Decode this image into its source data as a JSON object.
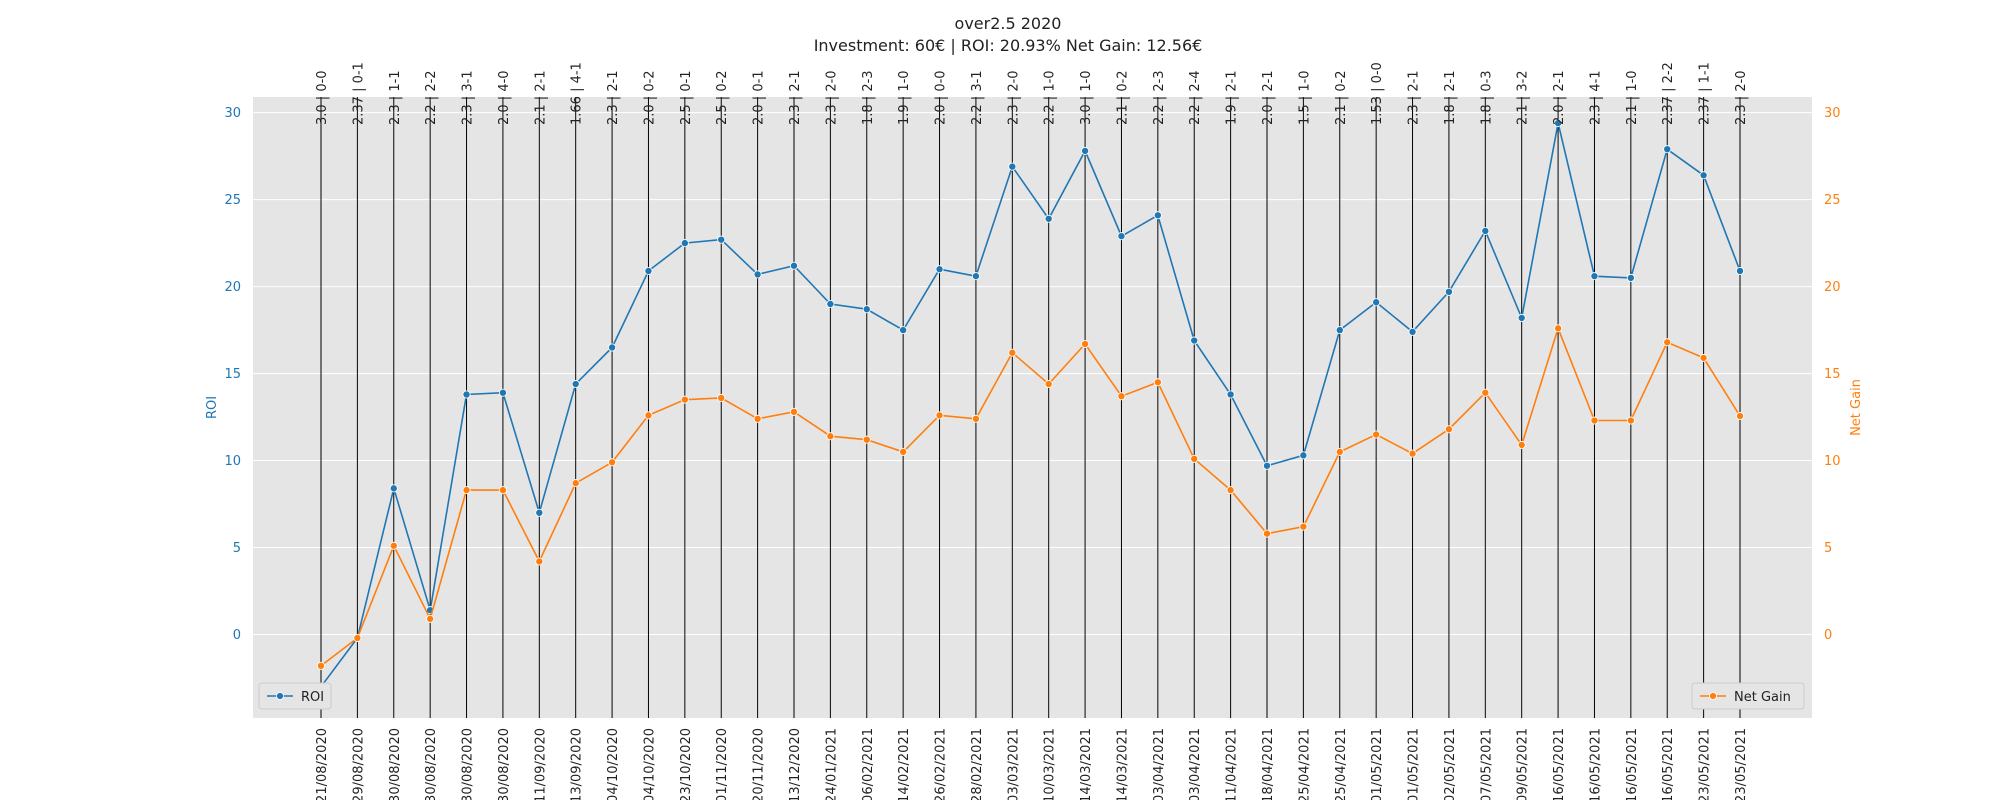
{
  "chart_data": {
    "type": "line",
    "title": "over2.5 2020",
    "subtitle": "Investment: 60€ | ROI: 20.93% Net Gain: 12.56€",
    "x": [
      "21/08/2020",
      "29/08/2020",
      "30/08/2020",
      "30/08/2020",
      "30/08/2020",
      "30/08/2020",
      "11/09/2020",
      "13/09/2020",
      "04/10/2020",
      "04/10/2020",
      "23/10/2020",
      "01/11/2020",
      "20/11/2020",
      "13/12/2020",
      "24/01/2021",
      "06/02/2021",
      "14/02/2021",
      "26/02/2021",
      "28/02/2021",
      "03/03/2021",
      "10/03/2021",
      "14/03/2021",
      "14/03/2021",
      "03/04/2021",
      "03/04/2021",
      "11/04/2021",
      "18/04/2021",
      "25/04/2021",
      "25/04/2021",
      "01/05/2021",
      "01/05/2021",
      "02/05/2021",
      "07/05/2021",
      "09/05/2021",
      "16/05/2021",
      "16/05/2021",
      "16/05/2021",
      "16/05/2021",
      "23/05/2021",
      "23/05/2021"
    ],
    "top_labels": [
      "3.0 | 0-0",
      "2.37 | 0-1",
      "2.3 | 1-1",
      "2.2 | 2-2",
      "2.3 | 3-1",
      "2.0 | 4-0",
      "2.1 | 2-1",
      "1.66 | 4-1",
      "2.3 | 2-1",
      "2.0 | 0-2",
      "2.5 | 0-1",
      "2.5 | 0-2",
      "2.0 | 0-1",
      "2.3 | 2-1",
      "2.3 | 2-0",
      "1.8 | 2-3",
      "1.9 | 1-0",
      "2.0 | 0-0",
      "2.2 | 3-1",
      "2.3 | 2-0",
      "2.2 | 1-0",
      "3.0 | 1-0",
      "2.1 | 0-2",
      "2.2 | 2-3",
      "2.2 | 2-4",
      "1.9 | 2-1",
      "2.0 | 2-1",
      "1.5 | 1-0",
      "2.1 | 0-2",
      "1.53 | 0-0",
      "2.3 | 2-1",
      "1.8 | 2-1",
      "1.8 | 0-3",
      "2.1 | 3-2",
      "2.0 | 2-1",
      "2.3 | 4-1",
      "2.1 | 1-0",
      "2.37 | 2-2",
      "2.37 | 1-1",
      "2.3 | 2-0"
    ],
    "series": [
      {
        "name": "ROI",
        "axis": "left",
        "color": "#1f77b4",
        "values": [
          -3.0,
          -0.2,
          8.4,
          1.4,
          13.8,
          13.9,
          7.0,
          14.4,
          16.5,
          20.9,
          22.5,
          22.7,
          20.7,
          21.2,
          19.0,
          18.7,
          17.5,
          21.0,
          20.6,
          26.9,
          23.9,
          27.8,
          22.9,
          24.1,
          16.9,
          13.8,
          9.7,
          10.3,
          17.5,
          19.1,
          17.4,
          19.7,
          23.2,
          18.2,
          29.4,
          20.6,
          20.5,
          27.9,
          26.4,
          20.9
        ]
      },
      {
        "name": "Net Gain",
        "axis": "right",
        "color": "#ff7f0e",
        "values": [
          -1.8,
          -0.2,
          5.1,
          0.9,
          8.3,
          8.3,
          4.2,
          8.7,
          9.9,
          12.6,
          13.5,
          13.6,
          12.4,
          12.8,
          11.4,
          11.2,
          10.5,
          12.6,
          12.4,
          16.2,
          14.4,
          16.7,
          13.7,
          14.5,
          10.1,
          8.3,
          5.8,
          6.2,
          10.5,
          11.5,
          10.4,
          11.8,
          13.9,
          10.9,
          17.6,
          12.3,
          12.3,
          16.8,
          15.9,
          12.56
        ]
      }
    ],
    "ylabel_left": "ROI",
    "ylabel_right": "Net Gain",
    "ylim": [
      -4.8,
      30.9
    ],
    "y_ticks": [
      0,
      5,
      10,
      15,
      20,
      25,
      30
    ],
    "grid": true,
    "legend_left_position": "lower-left",
    "legend_right_position": "lower-right",
    "background_color": "#e5e5e5",
    "grid_color": "#ffffff"
  }
}
